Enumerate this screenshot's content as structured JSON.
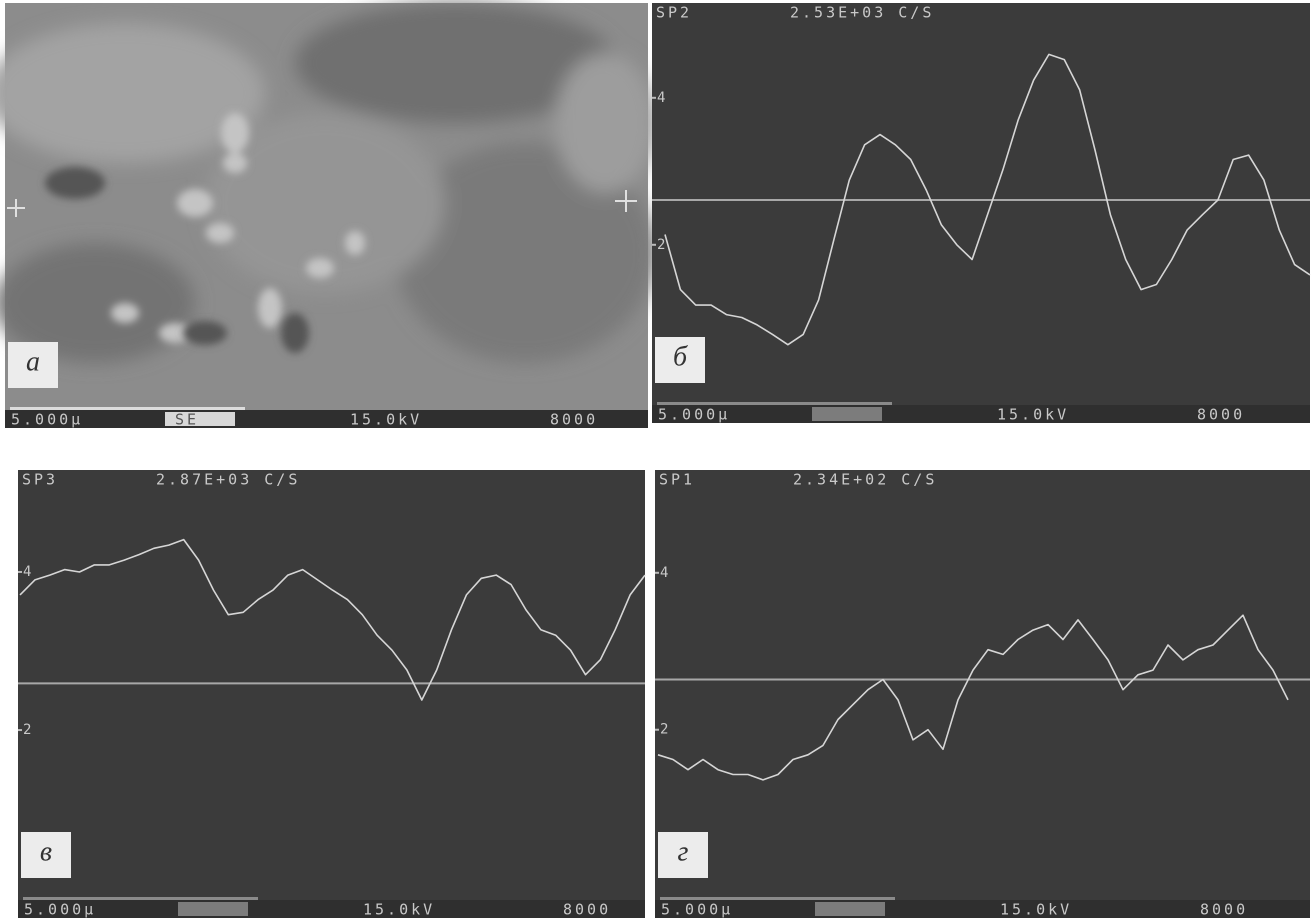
{
  "chart_data": [
    {
      "type": "image",
      "label": "а",
      "footer": {
        "scale": "5.000µ",
        "mode": "SE",
        "voltage": "15.0kV",
        "magnification": "8000"
      }
    },
    {
      "type": "line",
      "label": "б",
      "spot": "SP2",
      "rate": "2.53E+03 C/S",
      "values": [
        2.14,
        1.39,
        1.18,
        1.18,
        1.05,
        1.01,
        0.91,
        0.78,
        0.64,
        0.78,
        1.25,
        2.07,
        2.88,
        3.36,
        3.5,
        3.36,
        3.16,
        2.75,
        2.27,
        2.0,
        1.8,
        2.41,
        3.02,
        3.7,
        4.24,
        4.59,
        4.52,
        4.11,
        3.29,
        2.41,
        1.8,
        1.39,
        1.46,
        1.8,
        2.2,
        2.41,
        2.61,
        3.16,
        3.22,
        2.88,
        2.2,
        1.73,
        1.59
      ],
      "ylim": [
        -0.18,
        5.29
      ],
      "yticks": [
        2,
        4
      ],
      "reference": 2.61,
      "footer": {
        "scale": "5.000µ",
        "voltage": "15.0kV",
        "magnification": "8000"
      }
    },
    {
      "type": "line",
      "label": "в",
      "spot": "SP3",
      "rate": "2.87E+03 C/S",
      "values": [
        3.71,
        3.9,
        3.96,
        4.03,
        4.0,
        4.09,
        4.09,
        4.15,
        4.22,
        4.3,
        4.34,
        4.41,
        4.15,
        3.77,
        3.46,
        3.49,
        3.65,
        3.77,
        3.96,
        4.03,
        3.9,
        3.77,
        3.65,
        3.46,
        3.2,
        3.01,
        2.76,
        2.38,
        2.76,
        3.27,
        3.71,
        3.92,
        3.96,
        3.84,
        3.52,
        3.27,
        3.2,
        3.01,
        2.7,
        2.89,
        3.27,
        3.71,
        3.96
      ],
      "ylim": [
        -0.15,
        5.29
      ],
      "yticks": [
        2,
        4
      ],
      "reference": 2.59,
      "footer": {
        "scale": "5.000µ",
        "voltage": "15.0kV",
        "magnification": "8000"
      }
    },
    {
      "type": "line",
      "label": "г",
      "spot": "SP1",
      "rate": "2.34E+02 C/S",
      "values": [
        1.68,
        1.62,
        1.49,
        1.62,
        1.49,
        1.43,
        1.43,
        1.36,
        1.43,
        1.62,
        1.68,
        1.8,
        2.13,
        2.32,
        2.51,
        2.64,
        2.38,
        1.87,
        2.0,
        1.75,
        2.38,
        2.76,
        3.02,
        2.96,
        3.15,
        3.27,
        3.34,
        3.15,
        3.4,
        3.15,
        2.89,
        2.51,
        2.7,
        2.76,
        3.08,
        2.89,
        3.02,
        3.08,
        3.27,
        3.46,
        3.02,
        2.76,
        2.38
      ],
      "ylim": [
        -0.17,
        5.31
      ],
      "yticks": [
        2,
        4
      ],
      "reference": 2.64,
      "footer": {
        "scale": "5.000µ",
        "voltage": "15.0kV",
        "magnification": "8000"
      }
    }
  ]
}
